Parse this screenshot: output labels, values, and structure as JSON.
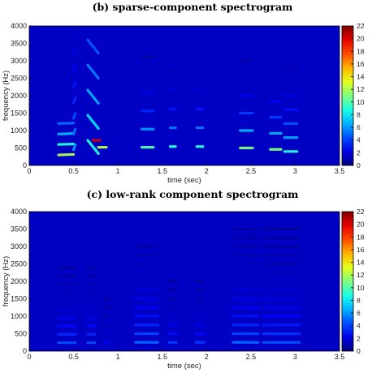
{
  "charts": [
    {
      "panel_title": "(b) sparse-component spectrogram",
      "chart_data": {
        "type": "heatmap",
        "title": "(b) sparse-component spectrogram",
        "xlabel": "time (sec)",
        "ylabel": "frequency (Hz)",
        "xlim": [
          0,
          3.5
        ],
        "ylim": [
          0,
          4000
        ],
        "xticks": [
          0,
          0.5,
          1,
          1.5,
          2,
          2.5,
          3,
          3.5
        ],
        "xtick_labels": [
          "0",
          "0.5",
          "1",
          "1.5",
          "2",
          "2.5",
          "3",
          "3.5"
        ],
        "yticks": [
          0,
          500,
          1000,
          1500,
          2000,
          2500,
          3000,
          3500,
          4000
        ],
        "ytick_labels": [
          "0",
          "500",
          "1000",
          "1500",
          "2000",
          "2500",
          "3000",
          "3500",
          "4000"
        ],
        "colorbar": {
          "range": [
            0,
            22
          ],
          "ticks": [
            0,
            2,
            4,
            6,
            8,
            10,
            12,
            14,
            16,
            18,
            20,
            22
          ],
          "tick_labels": [
            "0",
            "2",
            "4",
            "6",
            "8",
            "10",
            "12",
            "14",
            "16",
            "18",
            "20",
            "22"
          ],
          "colormap": "jet"
        },
        "background_value": 1.5,
        "segments": [
          {
            "t0": 0.33,
            "t1": 0.5,
            "f0": 300,
            "harmonics": 4,
            "dy": 15,
            "amp": 12,
            "decay": 0.75
          },
          {
            "t0": 0.5,
            "t1": 0.52,
            "f0": 450,
            "harmonics": 8,
            "dy": 140,
            "amp": 6,
            "decay": 0.85
          },
          {
            "t0": 0.66,
            "t1": 0.78,
            "f0": 720,
            "harmonics": 7,
            "dy": -380,
            "amp": 9,
            "decay": 0.85
          },
          {
            "t0": 0.72,
            "t1": 0.8,
            "f0": 720,
            "harmonics": 1,
            "dy": 0,
            "amp": 20,
            "decay": 1
          },
          {
            "t0": 0.78,
            "t1": 0.87,
            "f0": 520,
            "harmonics": 1,
            "dy": 0,
            "amp": 12,
            "decay": 1
          },
          {
            "t0": 1.27,
            "t1": 1.4,
            "f0": 520,
            "harmonics": 6,
            "dy": 0,
            "amp": 10,
            "decay": 0.6
          },
          {
            "t0": 1.59,
            "t1": 1.65,
            "f0": 540,
            "harmonics": 5,
            "dy": 0,
            "amp": 9,
            "decay": 0.6
          },
          {
            "t0": 1.89,
            "t1": 1.96,
            "f0": 540,
            "harmonics": 5,
            "dy": 0,
            "amp": 9,
            "decay": 0.6
          },
          {
            "t0": 2.38,
            "t1": 2.52,
            "f0": 500,
            "harmonics": 6,
            "dy": 0,
            "amp": 11,
            "decay": 0.6
          },
          {
            "t0": 2.72,
            "t1": 2.84,
            "f0": 460,
            "harmonics": 5,
            "dy": 0,
            "amp": 11,
            "decay": 0.6
          },
          {
            "t0": 2.88,
            "t1": 3.02,
            "f0": 400,
            "harmonics": 7,
            "dy": 0,
            "amp": 9,
            "decay": 0.7
          }
        ]
      }
    },
    {
      "panel_title": "(c) low-rank component spectrogram",
      "chart_data": {
        "type": "heatmap",
        "title": "(c) low-rank component spectrogram",
        "xlabel": "time (sec)",
        "ylabel": "frequency (Hz)",
        "xlim": [
          0,
          3.5
        ],
        "ylim": [
          0,
          4000
        ],
        "xticks": [
          0,
          0.5,
          1,
          1.5,
          2,
          2.5,
          3,
          3.5
        ],
        "xtick_labels": [
          "0",
          "0.5",
          "1",
          "1.5",
          "2",
          "2.5",
          "3",
          "3.5"
        ],
        "yticks": [
          0,
          500,
          1000,
          1500,
          2000,
          2500,
          3000,
          3500,
          4000
        ],
        "ytick_labels": [
          "0",
          "500",
          "1000",
          "1500",
          "2000",
          "2500",
          "3000",
          "3500",
          "4000"
        ],
        "colorbar": {
          "range": [
            0,
            22
          ],
          "ticks": [
            0,
            2,
            4,
            6,
            8,
            10,
            12,
            14,
            16,
            18,
            20,
            22
          ],
          "tick_labels": [
            "0",
            "2",
            "4",
            "6",
            "8",
            "10",
            "12",
            "14",
            "16",
            "18",
            "20",
            "22"
          ],
          "colormap": "jet"
        },
        "background_value": 1.5,
        "segments": [
          {
            "t0": 0.33,
            "t1": 0.52,
            "f0": 240,
            "harmonics": 10,
            "dy": 0,
            "amp": 4.5,
            "decay": 0.8
          },
          {
            "t0": 0.66,
            "t1": 0.74,
            "f0": 240,
            "harmonics": 10,
            "dy": 0,
            "amp": 4.5,
            "decay": 0.8
          },
          {
            "t0": 0.85,
            "t1": 0.9,
            "f0": 250,
            "harmonics": 6,
            "dy": 0,
            "amp": 2.5,
            "decay": 0.7
          },
          {
            "t0": 1.2,
            "t1": 1.45,
            "f0": 250,
            "harmonics": 12,
            "dy": 0,
            "amp": 5,
            "decay": 0.85
          },
          {
            "t0": 1.58,
            "t1": 1.66,
            "f0": 250,
            "harmonics": 8,
            "dy": 0,
            "amp": 4,
            "decay": 0.75
          },
          {
            "t0": 1.88,
            "t1": 1.97,
            "f0": 250,
            "harmonics": 8,
            "dy": 0,
            "amp": 4,
            "decay": 0.75
          },
          {
            "t0": 2.3,
            "t1": 2.58,
            "f0": 250,
            "harmonics": 14,
            "dy": 0,
            "amp": 5,
            "decay": 0.85
          },
          {
            "t0": 2.64,
            "t1": 3.05,
            "f0": 250,
            "harmonics": 14,
            "dy": 0,
            "amp": 4.5,
            "decay": 0.85
          }
        ]
      }
    }
  ]
}
